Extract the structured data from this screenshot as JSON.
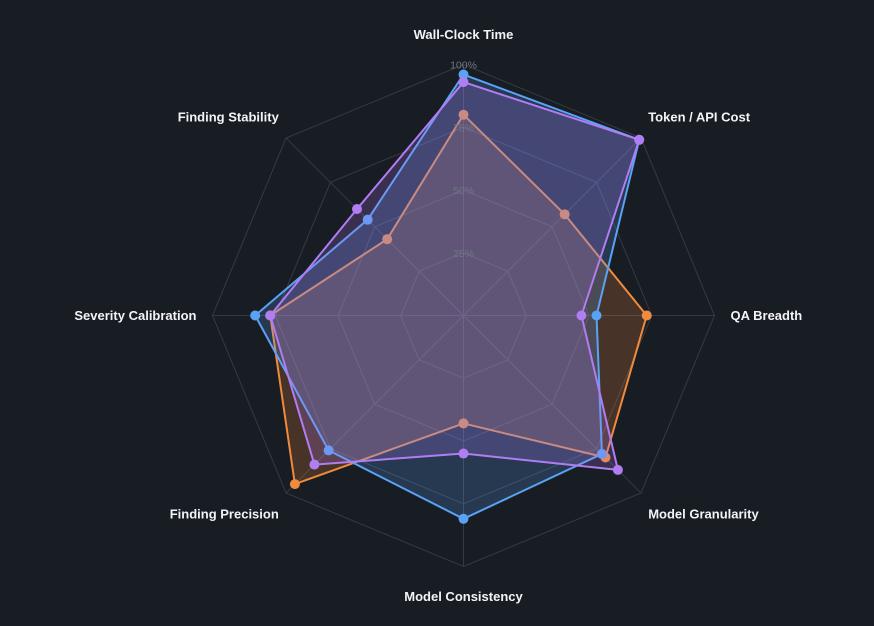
{
  "chart_data": {
    "type": "radar",
    "axes": [
      "Wall-Clock Time",
      "Token / API Cost",
      "QA Breadth",
      "Model Granularity",
      "Model Consistency",
      "Finding Precision",
      "Severity Calibration",
      "Finding Stability"
    ],
    "ticks": [
      {
        "value": 25,
        "label": "25%"
      },
      {
        "value": 50,
        "label": "50%"
      },
      {
        "value": 75,
        "label": "75%"
      },
      {
        "value": 100,
        "label": "100%"
      }
    ],
    "range": [
      0,
      100
    ],
    "series": [
      {
        "color": "#f08a3c",
        "fill": "rgba(240,138,60,0.22)",
        "values": [
          80,
          57,
          73,
          80,
          43,
          95,
          77,
          43
        ]
      },
      {
        "color": "#5aa2f5",
        "fill": "rgba(90,162,245,0.22)",
        "values": [
          96,
          99,
          53,
          78,
          81,
          76,
          83,
          54
        ]
      },
      {
        "color": "#b07df2",
        "fill": "rgba(176,125,242,0.22)",
        "values": [
          93,
          99,
          47,
          87,
          55,
          84,
          77,
          60
        ]
      }
    ]
  }
}
